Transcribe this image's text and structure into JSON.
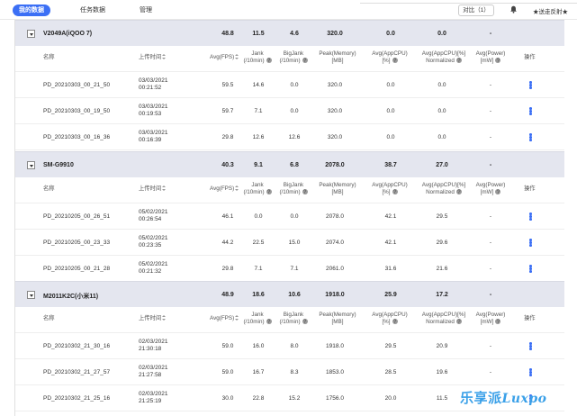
{
  "topbar": {
    "tabs": [
      {
        "label": "我的数据",
        "active": true
      },
      {
        "label": "任务数据",
        "active": false
      },
      {
        "label": "管理",
        "active": false
      }
    ],
    "compare_label": "对比（1）",
    "user_label": "★送走反射★"
  },
  "columns": {
    "name": "名称",
    "upload_time": "上传时间",
    "fps": "Avg(FPS)",
    "jank": [
      "Jank",
      "(/10min)"
    ],
    "bigjank": [
      "BigJank",
      "(/10min)"
    ],
    "memory": [
      "Peak(Memory)",
      "[MB]"
    ],
    "appcpu": [
      "Avg(AppCPU)",
      "[%]"
    ],
    "appcpu_norm": [
      "Avg(AppCPU)[%]",
      "Normalized"
    ],
    "power": [
      "Avg(Power)",
      "[mW]"
    ],
    "action": "操作"
  },
  "groups": [
    {
      "device": "V2049A(iQOO 7)",
      "summary": {
        "fps": "48.8",
        "jank": "11.5",
        "bigjank": "4.6",
        "memory": "320.0",
        "appcpu": "0.0",
        "appcpu_norm": "0.0",
        "power": "-"
      },
      "rows": [
        {
          "name": "PD_20210303_00_21_50",
          "date": "03/03/2021",
          "time": "00:21:52",
          "fps": "59.5",
          "jank": "14.6",
          "bigjank": "0.0",
          "memory": "320.0",
          "appcpu": "0.0",
          "appcpu_norm": "0.0",
          "power": "-"
        },
        {
          "name": "PD_20210303_00_19_50",
          "date": "03/03/2021",
          "time": "00:19:53",
          "fps": "59.7",
          "jank": "7.1",
          "bigjank": "0.0",
          "memory": "320.0",
          "appcpu": "0.0",
          "appcpu_norm": "0.0",
          "power": "-"
        },
        {
          "name": "PD_20210303_00_16_36",
          "date": "03/03/2021",
          "time": "00:16:39",
          "fps": "29.8",
          "jank": "12.6",
          "bigjank": "12.6",
          "memory": "320.0",
          "appcpu": "0.0",
          "appcpu_norm": "0.0",
          "power": "-"
        }
      ]
    },
    {
      "device": "SM-G9910",
      "summary": {
        "fps": "40.3",
        "jank": "9.1",
        "bigjank": "6.8",
        "memory": "2078.0",
        "appcpu": "38.7",
        "appcpu_norm": "27.0",
        "power": "-"
      },
      "rows": [
        {
          "name": "PD_20210205_00_26_51",
          "date": "05/02/2021",
          "time": "00:26:54",
          "fps": "46.1",
          "jank": "0.0",
          "bigjank": "0.0",
          "memory": "2078.0",
          "appcpu": "42.1",
          "appcpu_norm": "29.5",
          "power": "-"
        },
        {
          "name": "PD_20210205_00_23_33",
          "date": "05/02/2021",
          "time": "00:23:35",
          "fps": "44.2",
          "jank": "22.5",
          "bigjank": "15.0",
          "memory": "2074.0",
          "appcpu": "42.1",
          "appcpu_norm": "29.6",
          "power": "-"
        },
        {
          "name": "PD_20210205_00_21_28",
          "date": "05/02/2021",
          "time": "00:21:32",
          "fps": "29.8",
          "jank": "7.1",
          "bigjank": "7.1",
          "memory": "2061.0",
          "appcpu": "31.6",
          "appcpu_norm": "21.6",
          "power": "-"
        }
      ]
    },
    {
      "device": "M2011K2C(小米11)",
      "summary": {
        "fps": "48.9",
        "jank": "18.6",
        "bigjank": "10.6",
        "memory": "1918.0",
        "appcpu": "25.9",
        "appcpu_norm": "17.2",
        "power": "-"
      },
      "rows": [
        {
          "name": "PD_20210302_21_30_16",
          "date": "02/03/2021",
          "time": "21:30:18",
          "fps": "59.0",
          "jank": "16.0",
          "bigjank": "8.0",
          "memory": "1918.0",
          "appcpu": "29.5",
          "appcpu_norm": "20.9",
          "power": "-"
        },
        {
          "name": "PD_20210302_21_27_57",
          "date": "02/03/2021",
          "time": "21:27:58",
          "fps": "59.0",
          "jank": "16.7",
          "bigjank": "8.3",
          "memory": "1853.0",
          "appcpu": "28.5",
          "appcpu_norm": "19.6",
          "power": "-"
        },
        {
          "name": "PD_20210302_21_25_16",
          "date": "02/03/2021",
          "time": "21:25:19",
          "fps": "30.0",
          "jank": "22.8",
          "bigjank": "15.2",
          "memory": "1756.0",
          "appcpu": "20.0",
          "appcpu_norm": "11.5",
          "power": "-"
        }
      ]
    }
  ],
  "watermark": {
    "cn": "乐享派",
    "en": "Luxpo"
  }
}
